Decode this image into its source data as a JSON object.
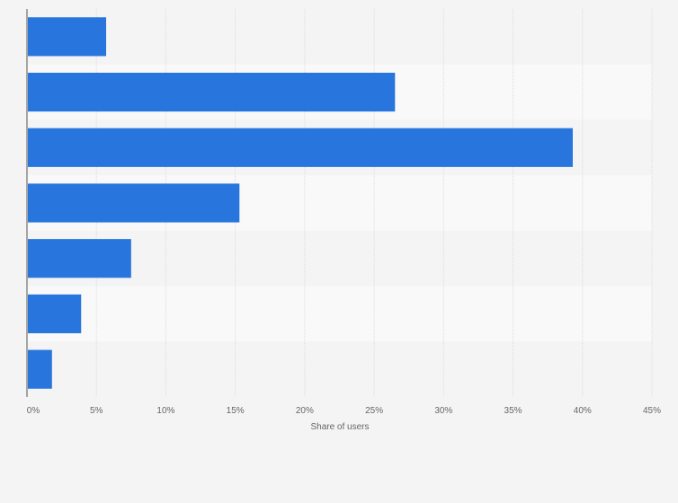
{
  "chart_data": {
    "type": "bar",
    "orientation": "horizontal",
    "title": "",
    "xlabel": "Share of users",
    "ylabel": "",
    "categories": [
      "",
      "",
      "",
      "",
      "",
      "",
      ""
    ],
    "values": [
      5.7,
      26.5,
      39.3,
      15.3,
      7.5,
      3.9,
      1.8
    ],
    "x_ticks": [
      "0%",
      "5%",
      "10%",
      "15%",
      "20%",
      "25%",
      "30%",
      "35%",
      "40%",
      "45%"
    ],
    "xlim": [
      0,
      45
    ],
    "unit": "%",
    "grid": true,
    "legend": "none",
    "bar_color": "#2876dd",
    "band_colors": [
      "#f4f4f4",
      "#f9f9f9"
    ]
  }
}
